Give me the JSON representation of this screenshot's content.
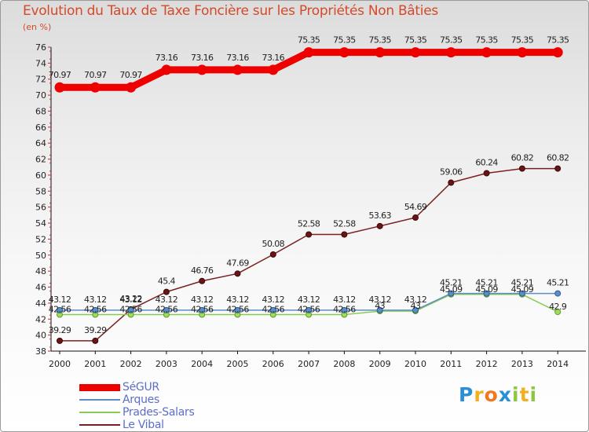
{
  "chart_data": {
    "type": "line",
    "title": "Evolution du Taux de Taxe Foncière sur les Propriétés Non Bâties",
    "ylabel": "(en %)",
    "xlabel": "",
    "categories": [
      "2000",
      "2001",
      "2002",
      "2003",
      "2004",
      "2005",
      "2006",
      "2007",
      "2008",
      "2009",
      "2010",
      "2011",
      "2012",
      "2013",
      "2014"
    ],
    "ylim": [
      38,
      76
    ],
    "yticks": [
      "38",
      "40",
      "42",
      "44",
      "46",
      "48",
      "50",
      "52",
      "54",
      "56",
      "58",
      "60",
      "62",
      "64",
      "66",
      "68",
      "70",
      "72",
      "74",
      "76"
    ],
    "grid": false,
    "legend_position": "bottom-left",
    "series": [
      {
        "name": "SéGUR",
        "color": "#ee0000",
        "values": [
          70.97,
          70.97,
          70.97,
          73.16,
          73.16,
          73.16,
          73.16,
          75.35,
          75.35,
          75.35,
          75.35,
          75.35,
          75.35,
          75.35,
          75.35
        ],
        "labels": [
          "70.97",
          "70.97",
          "70.97",
          "73.16",
          "73.16",
          "73.16",
          "73.16",
          "75.35",
          "75.35",
          "75.35",
          "75.35",
          "75.35",
          "75.35",
          "75.35",
          "75.35"
        ]
      },
      {
        "name": "Arques",
        "color": "#5b8ec6",
        "values": [
          43.12,
          43.12,
          43.12,
          43.12,
          43.12,
          43.12,
          43.12,
          43.12,
          43.12,
          43.12,
          43.12,
          45.21,
          45.21,
          45.21,
          45.21
        ],
        "labels": [
          "43.12",
          "43.12",
          "43.12",
          "43.12",
          "43.12",
          "43.12",
          "43.12",
          "43.12",
          "43.12",
          "43.12",
          "43.12",
          "45.21",
          "45.21",
          "45.21",
          "45.21"
        ]
      },
      {
        "name": "Prades-Salars",
        "color": "#88cc55",
        "values": [
          42.56,
          42.56,
          42.56,
          42.56,
          42.56,
          42.56,
          42.56,
          42.56,
          42.56,
          43,
          43,
          45.09,
          45.09,
          45.09,
          42.9
        ],
        "labels": [
          "42.56",
          "42.56",
          "42.56",
          "42.56",
          "42.56",
          "42.56",
          "42.56",
          "42.56",
          "42.56",
          "43",
          "43",
          "45.09",
          "45.09",
          "45.09",
          "42.9"
        ]
      },
      {
        "name": "Le Vibal",
        "color": "#7a2020",
        "values": [
          39.29,
          39.29,
          43.22,
          45.4,
          46.76,
          47.69,
          50.08,
          52.58,
          52.58,
          53.63,
          54.69,
          59.06,
          60.24,
          60.82,
          60.82
        ],
        "labels": [
          "39.29",
          "39.29",
          "43.22",
          "45.4",
          "46.76",
          "47.69",
          "50.08",
          "52.58",
          "52.58",
          "53.63",
          "54.69",
          "59.06",
          "60.24",
          "60.82",
          "60.82"
        ]
      }
    ]
  },
  "legend": {
    "items": [
      {
        "label": "SéGUR"
      },
      {
        "label": "Arques"
      },
      {
        "label": "Prades-Salars"
      },
      {
        "label": "Le Vibal"
      }
    ]
  },
  "brand": {
    "letters": [
      "P",
      "r",
      "o",
      "x",
      "i",
      "t",
      "i"
    ],
    "colors": [
      "#2a8fd4",
      "#f0b020",
      "#f07820",
      "#2a8fd4",
      "#8ec63f",
      "#f0b020",
      "#8ec63f"
    ]
  }
}
